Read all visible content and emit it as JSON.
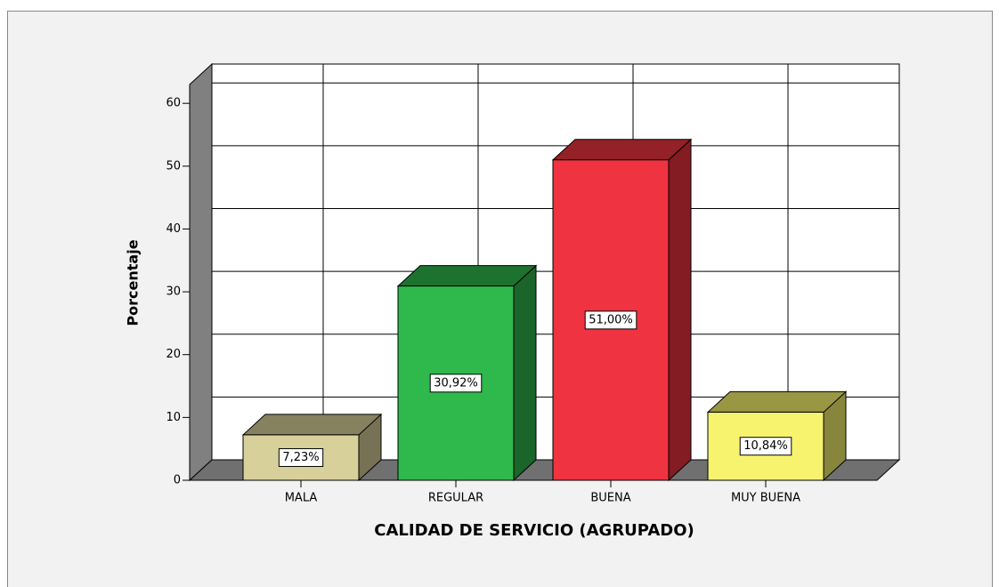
{
  "chart_data": {
    "type": "bar3d",
    "x_label": "CALIDAD DE SERVICIO (AGRUPADO)",
    "y_label": "Porcentaje",
    "categories": [
      "MALA",
      "REGULAR",
      "BUENA",
      "MUY BUENA"
    ],
    "values": [
      7.23,
      30.92,
      51.0,
      10.84
    ],
    "value_labels": [
      "7,23%",
      "30,92%",
      "51,00%",
      "10,84%"
    ],
    "colors": [
      "#d8d09a",
      "#2fb84b",
      "#ef3340",
      "#f8f36e"
    ],
    "ylim": [
      0,
      63
    ],
    "yticks": [
      0,
      10,
      20,
      30,
      40,
      50,
      60
    ],
    "grid": true
  }
}
